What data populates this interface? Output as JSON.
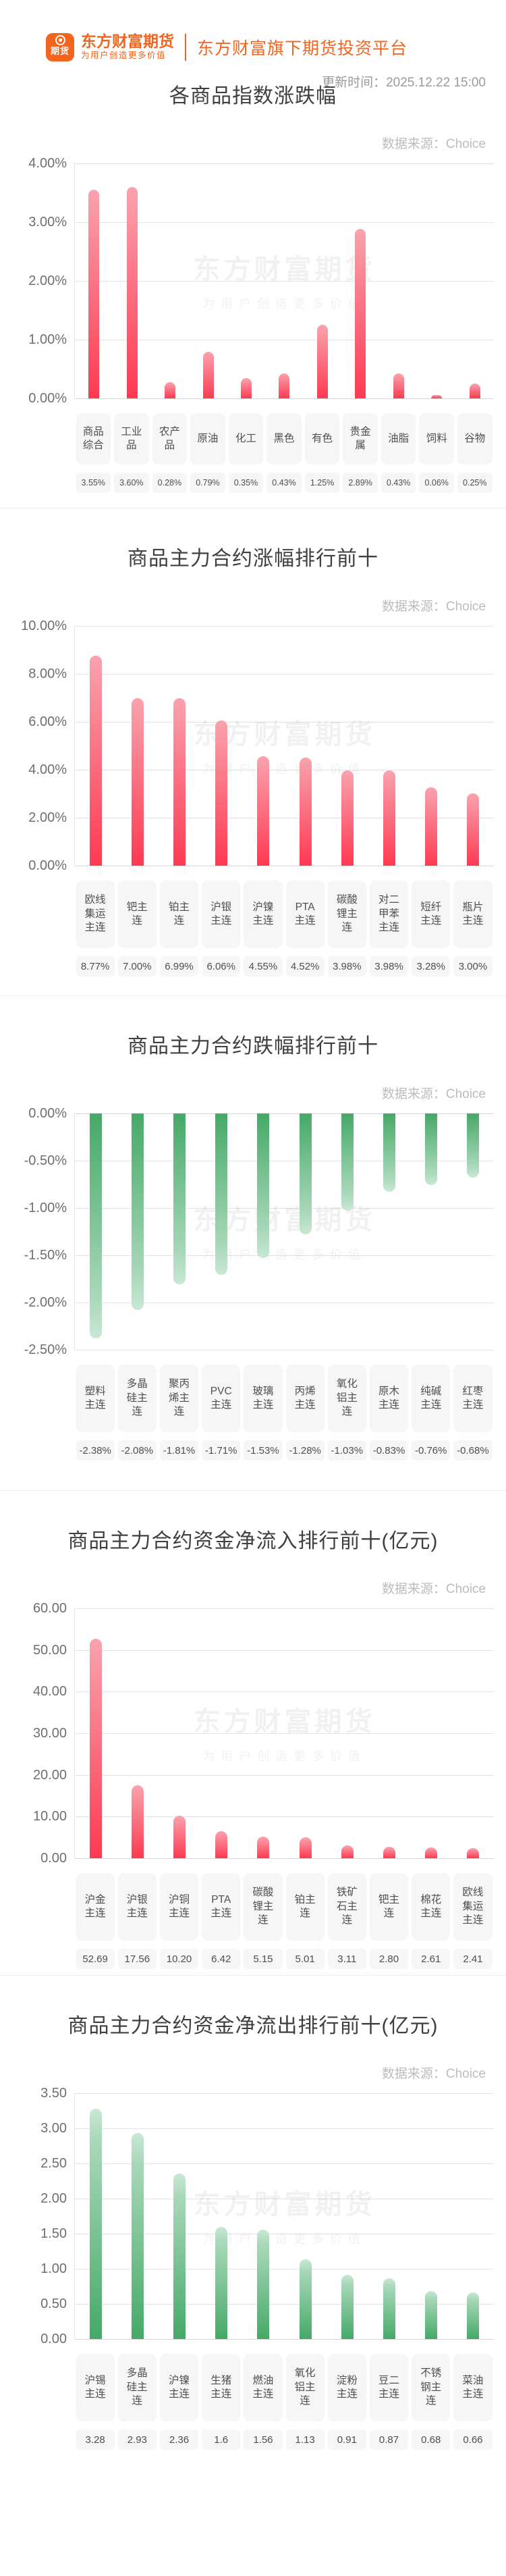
{
  "header": {
    "logo_icon_text": "期货",
    "brand_name": "东方财富期货",
    "brand_tagline": "为用户创造更多价值",
    "platform_title": "东方财富旗下期货投资平台",
    "update_time": "更新时间：2025.12.22 15:00"
  },
  "watermark": {
    "line1": "东方财富期货",
    "line2": "为用户创造更多价值"
  },
  "source_label": "数据来源：Choice",
  "colors": {
    "brand_orange": "#f3641e",
    "title_gray": "#3f3f3f",
    "source_gray": "#bcbcbc",
    "axis_gray": "#6f6f6f",
    "grid_line": "#e4e4e4",
    "label_box_bg": "#f6f6f6",
    "label_text": "#4f4f4f",
    "red_bar_top": "#f9a3ae",
    "red_bar_bottom": "#fd3a52",
    "green_bar_dark": "#45a967",
    "green_bar_light": "#a9d8ba",
    "green_bar_cap": "#c9e8d4"
  },
  "chart_data": [
    {
      "type": "bar",
      "title": "各商品指数涨跌幅",
      "source": "数据来源：Choice",
      "categories": [
        "商品综合",
        "工业品",
        "农产品",
        "原油",
        "化工",
        "黑色",
        "有色",
        "贵金属",
        "油脂",
        "饲料",
        "谷物"
      ],
      "values": [
        3.55,
        3.6,
        0.28,
        0.79,
        0.35,
        0.43,
        1.25,
        2.89,
        0.43,
        0.06,
        0.25
      ],
      "value_labels": [
        "3.55%",
        "3.60%",
        "0.28%",
        "0.79%",
        "0.35%",
        "0.43%",
        "1.25%",
        "2.89%",
        "0.43%",
        "0.06%",
        "0.25%"
      ],
      "yticks": [
        "4.00%",
        "3.00%",
        "2.00%",
        "1.00%",
        "0.00%"
      ],
      "ylim": [
        0,
        4
      ],
      "bar_color": "red",
      "direction": "up",
      "grid": true,
      "legend": "none"
    },
    {
      "type": "bar",
      "title": "商品主力合约涨幅排行前十",
      "source": "数据来源：Choice",
      "categories": [
        "欧线集运主连",
        "钯主连",
        "铂主连",
        "沪银主连",
        "沪镍主连",
        "PTA主连",
        "碳酸锂主连",
        "对二甲苯主连",
        "短纤主连",
        "瓶片主连"
      ],
      "values": [
        8.77,
        7.0,
        6.99,
        6.06,
        4.55,
        4.52,
        3.98,
        3.98,
        3.28,
        3.0
      ],
      "value_labels": [
        "8.77%",
        "7.00%",
        "6.99%",
        "6.06%",
        "4.55%",
        "4.52%",
        "3.98%",
        "3.98%",
        "3.28%",
        "3.00%"
      ],
      "yticks": [
        "10.00%",
        "8.00%",
        "6.00%",
        "4.00%",
        "2.00%",
        "0.00%"
      ],
      "ylim": [
        0,
        10
      ],
      "bar_color": "red",
      "direction": "up",
      "grid": true,
      "legend": "none"
    },
    {
      "type": "bar",
      "title": "商品主力合约跌幅排行前十",
      "source": "数据来源：Choice",
      "categories": [
        "塑料主连",
        "多晶硅主连",
        "聚丙烯主连",
        "PVC主连",
        "玻璃主连",
        "丙烯主连",
        "氧化铝主连",
        "原木主连",
        "纯碱主连",
        "红枣主连"
      ],
      "values": [
        -2.38,
        -2.08,
        -1.81,
        -1.71,
        -1.53,
        -1.28,
        -1.03,
        -0.83,
        -0.76,
        -0.68
      ],
      "value_labels": [
        "-2.38%",
        "-2.08%",
        "-1.81%",
        "-1.71%",
        "-1.53%",
        "-1.28%",
        "-1.03%",
        "-0.83%",
        "-0.76%",
        "-0.68%"
      ],
      "yticks": [
        "0.00%",
        "-0.50%",
        "-1.00%",
        "-1.50%",
        "-2.00%",
        "-2.50%"
      ],
      "ylim": [
        0,
        -2.5
      ],
      "bar_color": "green",
      "direction": "down",
      "grid": true,
      "legend": "none"
    },
    {
      "type": "bar",
      "title": "商品主力合约资金净流入排行前十(亿元)",
      "source": "数据来源：Choice",
      "categories": [
        "沪金主连",
        "沪银主连",
        "沪铜主连",
        "PTA主连",
        "碳酸锂主连",
        "铂主连",
        "铁矿石主连",
        "钯主连",
        "棉花主连",
        "欧线集运主连"
      ],
      "values": [
        52.69,
        17.56,
        10.2,
        6.42,
        5.15,
        5.01,
        3.11,
        2.8,
        2.61,
        2.41
      ],
      "value_labels": [
        "52.69",
        "17.56",
        "10.20",
        "6.42",
        "5.15",
        "5.01",
        "3.11",
        "2.80",
        "2.61",
        "2.41"
      ],
      "yticks": [
        "60.00",
        "50.00",
        "40.00",
        "30.00",
        "20.00",
        "10.00",
        "0.00"
      ],
      "ylim": [
        0,
        60
      ],
      "bar_color": "red",
      "direction": "up",
      "grid": true,
      "legend": "none"
    },
    {
      "type": "bar",
      "title": "商品主力合约资金净流出排行前十(亿元)",
      "source": "数据来源：Choice",
      "categories": [
        "沪锡主连",
        "多晶硅主连",
        "沪镍主连",
        "生猪主连",
        "燃油主连",
        "氧化铝主连",
        "淀粉主连",
        "豆二主连",
        "不锈钢主连",
        "菜油主连"
      ],
      "values": [
        3.28,
        2.93,
        2.36,
        1.6,
        1.56,
        1.13,
        0.91,
        0.87,
        0.68,
        0.66
      ],
      "value_labels": [
        "3.28",
        "2.93",
        "2.36",
        "1.6",
        "1.56",
        "1.13",
        "0.91",
        "0.87",
        "0.68",
        "0.66"
      ],
      "yticks": [
        "3.50",
        "3.00",
        "2.50",
        "2.00",
        "1.50",
        "1.00",
        "0.50",
        "0.00"
      ],
      "ylim": [
        0,
        3.5
      ],
      "bar_color": "green",
      "direction": "up",
      "grid": true,
      "legend": "none"
    }
  ]
}
